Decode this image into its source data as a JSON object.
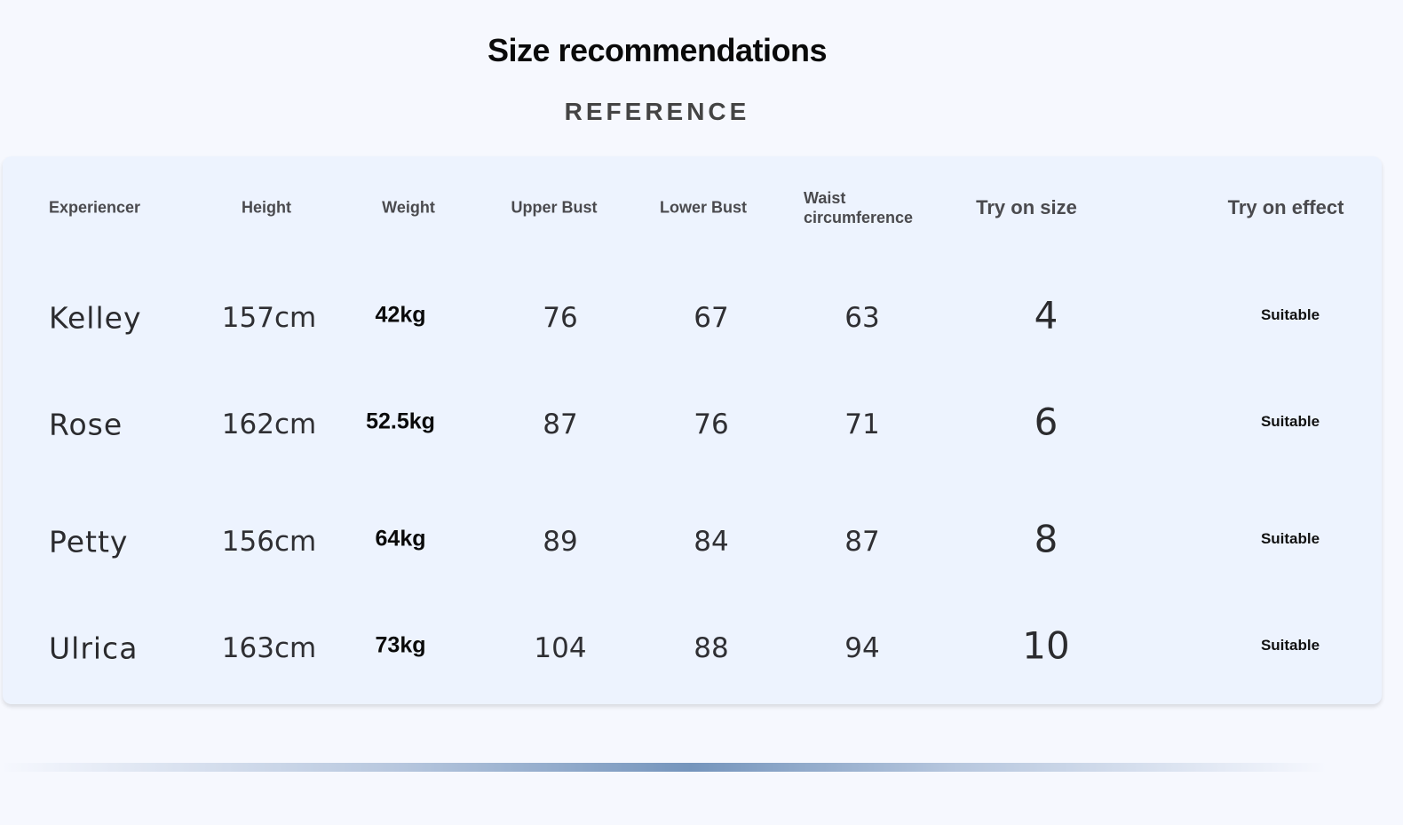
{
  "title": "Size recommendations",
  "subtitle": "REFERENCE",
  "table": {
    "headers": [
      "Experiencer",
      "Height",
      "Weight",
      "Upper Bust",
      "Lower Bust",
      "Waist circumference",
      "Try on size",
      "Try on effect"
    ],
    "rows": [
      [
        "Kelley",
        "157cm",
        "42kg",
        "76",
        "67",
        "63",
        "4",
        "Suitable"
      ],
      [
        "Rose",
        "162cm",
        "52.5kg",
        "87",
        "76",
        "71",
        "6",
        "Suitable"
      ],
      [
        "Petty",
        "156cm",
        "64kg",
        "89",
        "84",
        "87",
        "8",
        "Suitable"
      ],
      [
        "Ulrica",
        "163cm",
        "73kg",
        "104",
        "88",
        "94",
        "10",
        "Suitable"
      ]
    ]
  },
  "colors": {
    "background": "#f6f8fe",
    "card": "#edf3fe",
    "divider_accent": "#7595bc"
  }
}
